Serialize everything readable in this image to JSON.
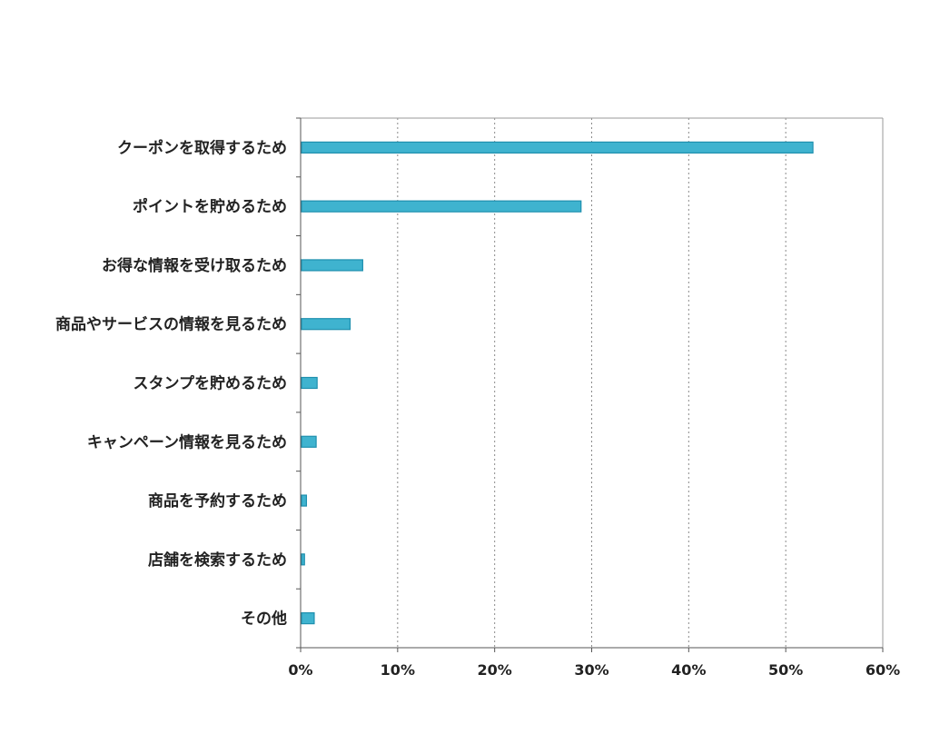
{
  "chart_data": {
    "type": "bar",
    "orientation": "horizontal",
    "categories": [
      "クーポンを取得するため",
      "ポイントを貯めるため",
      "お得な情報を受け取るため",
      "商品やサービスの情報を見るため",
      "スタンプを貯めるため",
      "キャンペーン情報を見るため",
      "商品を予約するため",
      "店舗を検索するため",
      "その他"
    ],
    "values": [
      52.8,
      28.9,
      6.4,
      5.1,
      1.7,
      1.6,
      0.6,
      0.4,
      1.4
    ],
    "xlim": [
      0,
      60
    ],
    "xticks": [
      0,
      10,
      20,
      30,
      40,
      50,
      60
    ],
    "tick_labels": [
      "0%",
      "10%",
      "20%",
      "30%",
      "40%",
      "50%",
      "60%"
    ],
    "title": "",
    "xlabel": "",
    "ylabel": "",
    "grid": "vertical dotted",
    "legend": "none",
    "bar_color": "#3fb3cf",
    "bar_edge_color": "#1e8fae"
  }
}
